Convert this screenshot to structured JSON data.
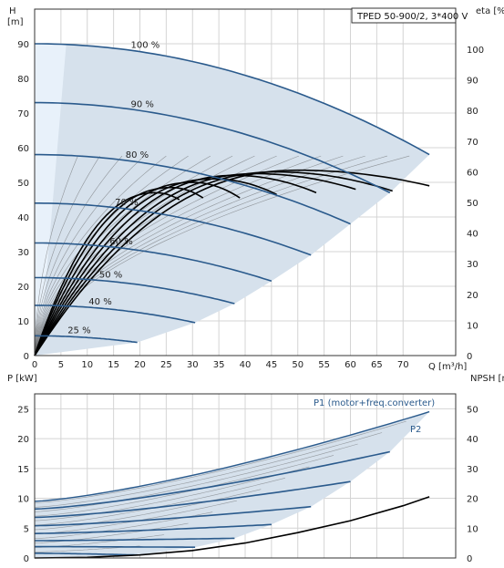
{
  "colors": {
    "region": "#d6e1ec",
    "region_light": "#e8f1fa",
    "speed_curve": "#2a5a8c",
    "thin_curve": "#555555",
    "eff_curve": "#000000",
    "npsh_curve": "#000000",
    "label_blue": "#2a5a8c"
  },
  "chart_data": [
    {
      "type": "line",
      "title": "TPED 50-900/2, 3*400 V",
      "xlabel": "Q [m³/h]",
      "ylabel": "H [m]",
      "y2label": "eta [%]",
      "xlim": [
        0,
        80
      ],
      "ylim": [
        0,
        100
      ],
      "y2lim": [
        0,
        100
      ],
      "xticks": [
        "0",
        "5",
        "10",
        "15",
        "20",
        "25",
        "30",
        "35",
        "40",
        "45",
        "50",
        "55",
        "60",
        "65",
        "70"
      ],
      "yticks": [
        "0",
        "10",
        "20",
        "30",
        "40",
        "50",
        "60",
        "70",
        "80",
        "90"
      ],
      "y2ticks": [
        "0",
        "10",
        "20",
        "30",
        "40",
        "50",
        "60",
        "70",
        "80",
        "90",
        "100"
      ],
      "grid": true,
      "speed_curves": [
        {
          "name": "100 %",
          "h0": 90,
          "qmax": 75,
          "hend": 58
        },
        {
          "name": "90 %",
          "h0": 73,
          "qmax": 67.5,
          "hend": 47
        },
        {
          "name": "80 %",
          "h0": 58,
          "qmax": 60,
          "hend": 38
        },
        {
          "name": "70 %",
          "h0": 44,
          "qmax": 52.5,
          "hend": 29
        },
        {
          "name": "60 %",
          "h0": 32.5,
          "qmax": 45,
          "hend": 21.5
        },
        {
          "name": "50 %",
          "h0": 22.5,
          "qmax": 38,
          "hend": 15
        },
        {
          "name": "40 %",
          "h0": 14.5,
          "qmax": 30.5,
          "hend": 9.5
        },
        {
          "name": "25 %",
          "h0": 5.7,
          "qmax": 19.5,
          "hend": 3.8
        }
      ],
      "efficiency_curves": [
        {
          "qpeak": 50,
          "peak": 53.5,
          "qend": 75,
          "eend": 49
        },
        {
          "qpeak": 46,
          "peak": 53,
          "qend": 68,
          "eend": 47.5
        },
        {
          "qpeak": 42,
          "peak": 52.5,
          "qend": 61,
          "eend": 48
        },
        {
          "qpeak": 38,
          "peak": 52,
          "qend": 53.5,
          "eend": 47
        },
        {
          "qpeak": 34,
          "peak": 51,
          "qend": 46,
          "eend": 46.5
        },
        {
          "qpeak": 30,
          "peak": 50,
          "qend": 39,
          "eend": 45.5
        },
        {
          "qpeak": 26,
          "peak": 48.5,
          "qend": 32,
          "eend": 45.5
        },
        {
          "qpeak": 23,
          "peak": 47,
          "qend": 27.5,
          "eend": 45
        }
      ]
    },
    {
      "type": "line",
      "xlabel": "",
      "ylabel": "P [kW]",
      "y2label": "NPSH [m]",
      "xlim": [
        0,
        80
      ],
      "ylim": [
        0,
        27.5
      ],
      "y2lim": [
        0,
        55
      ],
      "yticks": [
        "0",
        "5",
        "10",
        "15",
        "20",
        "25"
      ],
      "y2ticks": [
        "0",
        "10",
        "20",
        "30",
        "40",
        "50"
      ],
      "grid": true,
      "series_labels": {
        "p1": "P1 (motor+freq.converter)",
        "p2": "P2"
      },
      "power_curves": [
        {
          "q0": 0,
          "p0": 9.5,
          "qend": 75,
          "pend": 24.5
        },
        {
          "q0": 0,
          "p0": 8.2,
          "qend": 67.5,
          "pend": 17.8
        },
        {
          "q0": 0,
          "p0": 6.8,
          "qend": 60,
          "pend": 12.8
        },
        {
          "q0": 0,
          "p0": 5.4,
          "qend": 52.5,
          "pend": 8.6
        },
        {
          "q0": 0,
          "p0": 4.1,
          "qend": 45,
          "pend": 5.6
        },
        {
          "q0": 0,
          "p0": 2.9,
          "qend": 38,
          "pend": 3.3
        },
        {
          "q0": 0,
          "p0": 1.9,
          "qend": 30.5,
          "pend": 1.8
        },
        {
          "q0": 0,
          "p0": 0.8,
          "qend": 19.5,
          "pend": 0.5
        }
      ],
      "npsh_curve": {
        "x": [
          0,
          10,
          20,
          30,
          40,
          50,
          60,
          70,
          75
        ],
        "y": [
          0,
          0.2,
          1,
          2.5,
          5,
          8.5,
          12.5,
          17.5,
          20.5
        ]
      }
    }
  ]
}
